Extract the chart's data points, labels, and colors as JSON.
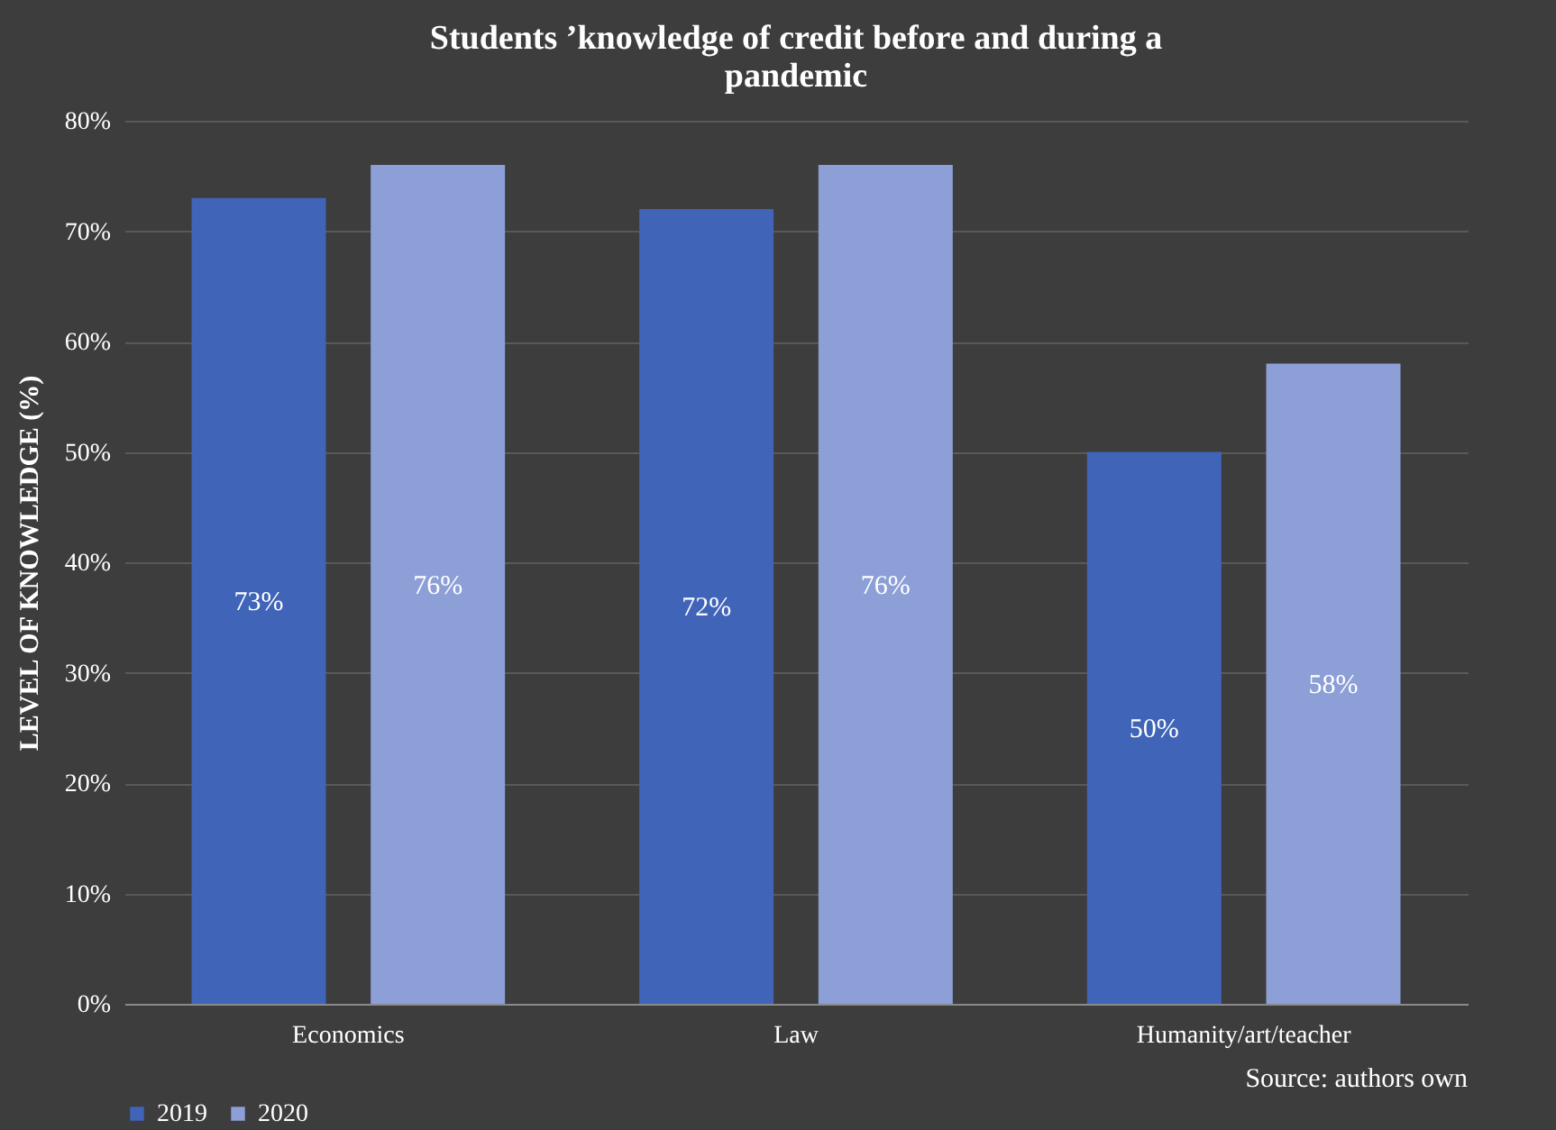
{
  "chart_data": {
    "type": "bar",
    "title": "Students ’knowledge of credit before and during a pandemic",
    "ylabel": "LEVEL OF KNOWLEDGE (%)",
    "categories": [
      "Economics",
      "Law",
      "Humanity/art/teacher"
    ],
    "series": [
      {
        "name": "2019",
        "color": "#3f64b8",
        "values": [
          73,
          72,
          50
        ],
        "value_labels": [
          "73%",
          "72%",
          "50%"
        ]
      },
      {
        "name": "2020",
        "color": "#8c9fd6",
        "values": [
          76,
          76,
          58
        ],
        "value_labels": [
          "76%",
          "76%",
          "58%"
        ]
      }
    ],
    "ylim": [
      0,
      80
    ],
    "yticks": [
      {
        "value": 0,
        "label": "0%"
      },
      {
        "value": 10,
        "label": "10%"
      },
      {
        "value": 20,
        "label": "20%"
      },
      {
        "value": 30,
        "label": "30%"
      },
      {
        "value": 40,
        "label": "40%"
      },
      {
        "value": 50,
        "label": "50%"
      },
      {
        "value": 60,
        "label": "60%"
      },
      {
        "value": 70,
        "label": "70%"
      },
      {
        "value": 80,
        "label": "80%"
      }
    ],
    "grid": "y",
    "legend": "bottom",
    "annotations": [
      "Source: authors own"
    ]
  }
}
